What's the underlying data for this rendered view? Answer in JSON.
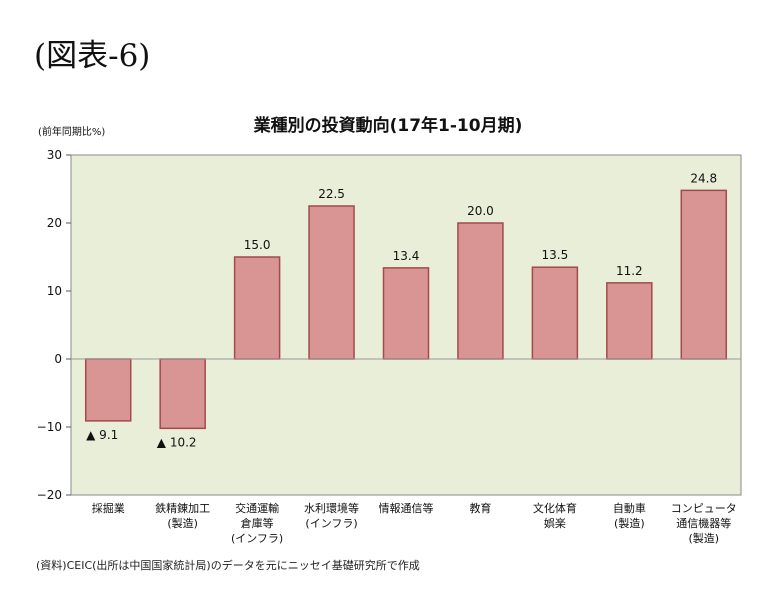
{
  "figure_label": "(図表-6)",
  "source_note": "(資料)CEIC(出所は中国国家統計局)のデータを元にニッセイ基礎研究所で作成",
  "chart_data": {
    "type": "bar",
    "title": "業種別の投資動向(17年1-10月期)",
    "unit_label": "(前年同期比%)",
    "xlabel": "",
    "ylabel": "",
    "ylim": [
      -20,
      30
    ],
    "yticks": [
      30,
      20,
      10,
      0,
      -10,
      -20
    ],
    "ytick_labels": [
      "30",
      "20",
      "10",
      "0",
      "−10",
      "−20"
    ],
    "grid": false,
    "legend": "none",
    "categories": [
      [
        "採掘業"
      ],
      [
        "鉄精錬加工",
        "(製造)"
      ],
      [
        "交通運輸",
        "倉庫等",
        "(インフラ)"
      ],
      [
        "水利環境等",
        "(インフラ)"
      ],
      [
        "情報通信等"
      ],
      [
        "教育"
      ],
      [
        "文化体育",
        "娯楽"
      ],
      [
        "自動車",
        "(製造)"
      ],
      [
        "コンピュータ",
        "通信機器等",
        "(製造)"
      ]
    ],
    "values": [
      -9.1,
      -10.2,
      15.0,
      22.5,
      13.4,
      20.0,
      13.5,
      11.2,
      24.8
    ],
    "value_labels": [
      "▲ 9.1",
      "▲ 10.2",
      "15.0",
      "22.5",
      "13.4",
      "20.0",
      "13.5",
      "11.2",
      "24.8"
    ],
    "colors": {
      "plot_bg": "#e9eed9",
      "bar_fill": "#d99494",
      "bar_stroke": "#a34a4a"
    }
  }
}
